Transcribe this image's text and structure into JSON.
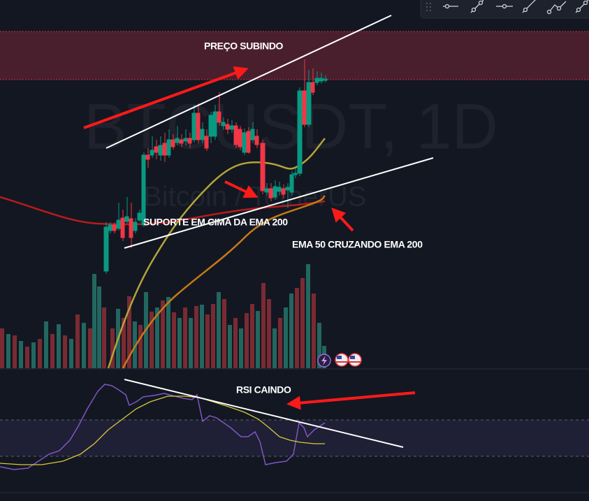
{
  "watermark": {
    "symbol": "BTCUSDT, 1D",
    "description": "Bitcoin / TetherUS"
  },
  "annotations": {
    "price_rising": "PREÇO SUBINDO",
    "support": "SUPORTE EM CIMA DA EMA 200",
    "cross": "EMA 50 CRUZANDO EMA 200",
    "rsi": "RSI CAINDO"
  }
}
